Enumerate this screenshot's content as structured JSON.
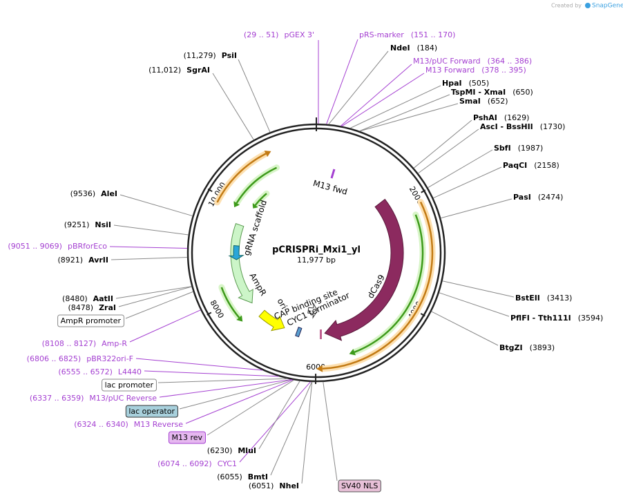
{
  "watermark": {
    "prefix": "Created by",
    "brand": "SnapGene"
  },
  "plasmid": {
    "name": "pCRISPRi_Mxi1_yl",
    "length": "11,977 bp"
  },
  "ticks": [
    "2000",
    "4000",
    "6000",
    "8000",
    "10,000"
  ],
  "features": [
    "M13 fwd",
    "gRNA scaffold",
    "AmpR",
    "ori",
    "CAP binding site",
    "CYC1 terminator",
    "dCas9"
  ],
  "labels": [
    {
      "kind": "primer",
      "name": "pGEX 3'",
      "range": "(29 .. 51)"
    },
    {
      "kind": "primer",
      "name": "pRS-marker",
      "range": "(151 .. 170)"
    },
    {
      "kind": "site",
      "name": "NdeI",
      "position": "(184)"
    },
    {
      "kind": "primer",
      "name": "M13/pUC Forward",
      "range": "(364 .. 386)"
    },
    {
      "kind": "primer",
      "name": "M13 Forward",
      "range": "(378 .. 395)"
    },
    {
      "kind": "site",
      "name": "HpaI",
      "position": "(505)"
    },
    {
      "kind": "site",
      "name": "TspMI - XmaI",
      "position": "(650)"
    },
    {
      "kind": "site",
      "name": "SmaI",
      "position": "(652)"
    },
    {
      "kind": "site",
      "name": "PshAI",
      "position": "(1629)"
    },
    {
      "kind": "site",
      "name": "AscI - BssHII",
      "position": "(1730)"
    },
    {
      "kind": "site",
      "name": "SbfI",
      "position": "(1987)"
    },
    {
      "kind": "site",
      "name": "PaqCI",
      "position": "(2158)"
    },
    {
      "kind": "site",
      "name": "PasI",
      "position": "(2474)"
    },
    {
      "kind": "site",
      "name": "BstEII",
      "position": "(3413)"
    },
    {
      "kind": "site",
      "name": "PflFI - Tth111I",
      "position": "(3594)"
    },
    {
      "kind": "site",
      "name": "BtgZI",
      "position": "(3893)"
    },
    {
      "kind": "feature",
      "name": "SV40 NLS"
    },
    {
      "kind": "site",
      "name": "NheI",
      "position": "(6051)"
    },
    {
      "kind": "site",
      "name": "BmtI",
      "position": "(6055)"
    },
    {
      "kind": "primer",
      "name": "CYC1",
      "range": "(6074 .. 6092)"
    },
    {
      "kind": "site",
      "name": "MluI",
      "position": "(6230)"
    },
    {
      "kind": "feature",
      "name": "M13 rev"
    },
    {
      "kind": "primer",
      "name": "M13 Reverse",
      "range": "(6324 .. 6340)"
    },
    {
      "kind": "feature",
      "name": "lac operator"
    },
    {
      "kind": "primer",
      "name": "M13/pUC Reverse",
      "range": "(6337 .. 6359)"
    },
    {
      "kind": "feature",
      "name": "lac promoter"
    },
    {
      "kind": "primer",
      "name": "L4440",
      "range": "(6555 .. 6572)"
    },
    {
      "kind": "primer",
      "name": "pBR322ori-F",
      "range": "(6806 .. 6825)"
    },
    {
      "kind": "primer",
      "name": "Amp-R",
      "range": "(8108 .. 8127)"
    },
    {
      "kind": "feature",
      "name": "AmpR promoter"
    },
    {
      "kind": "site",
      "name": "ZraI",
      "position": "(8478)"
    },
    {
      "kind": "site",
      "name": "AatII",
      "position": "(8480)"
    },
    {
      "kind": "site",
      "name": "AvrII",
      "position": "(8921)"
    },
    {
      "kind": "primer",
      "name": "pBRforEco",
      "range": "(9051 .. 9069)"
    },
    {
      "kind": "site",
      "name": "NsiI",
      "position": "(9251)"
    },
    {
      "kind": "site",
      "name": "AleI",
      "position": "(9536)"
    },
    {
      "kind": "site",
      "name": "SgrAI",
      "position": "(11,012)"
    },
    {
      "kind": "site",
      "name": "PsiI",
      "position": "(11,279)"
    }
  ]
}
